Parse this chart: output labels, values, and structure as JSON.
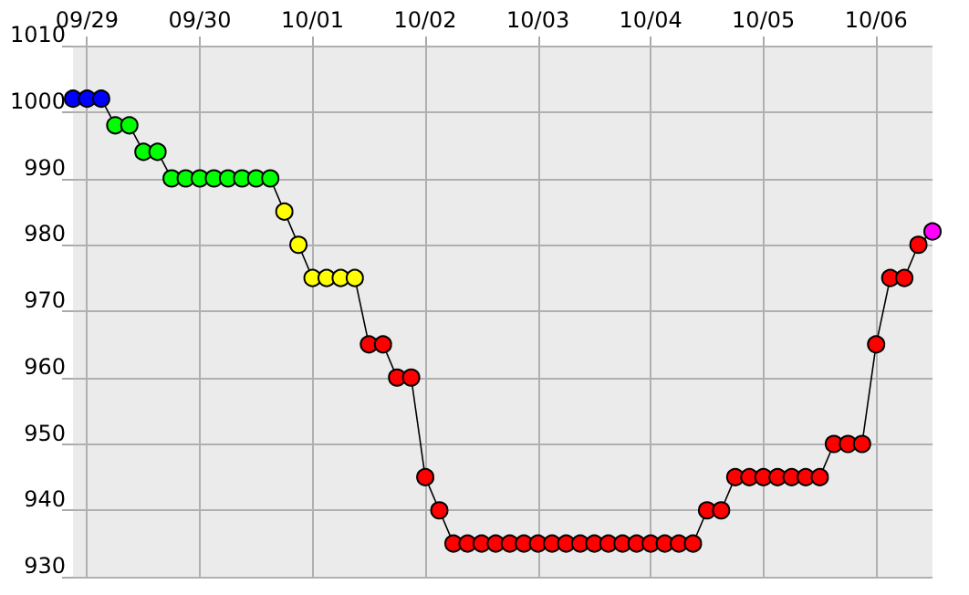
{
  "chart_data": {
    "type": "line",
    "marker": "circle",
    "grid": true,
    "x": [
      "--09-28T21:00",
      "--09-29T00:00",
      "--09-29T03:00",
      "--09-29T06:00",
      "--09-29T09:00",
      "--09-29T12:00",
      "--09-29T15:00",
      "--09-29T18:00",
      "--09-29T21:00",
      "--09-30T00:00",
      "--09-30T03:00",
      "--09-30T06:00",
      "--09-30T09:00",
      "--09-30T12:00",
      "--09-30T15:00",
      "--09-30T18:00",
      "--09-30T21:00",
      "--10-01T00:00",
      "--10-01T03:00",
      "--10-01T06:00",
      "--10-01T09:00",
      "--10-01T12:00",
      "--10-01T15:00",
      "--10-01T18:00",
      "--10-01T21:00",
      "--10-02T00:00",
      "--10-02T03:00",
      "--10-02T06:00",
      "--10-02T09:00",
      "--10-02T12:00",
      "--10-02T15:00",
      "--10-02T18:00",
      "--10-02T21:00",
      "--10-03T00:00",
      "--10-03T03:00",
      "--10-03T06:00",
      "--10-03T09:00",
      "--10-03T12:00",
      "--10-03T15:00",
      "--10-03T18:00",
      "--10-03T21:00",
      "--10-04T00:00",
      "--10-04T03:00",
      "--10-04T06:00",
      "--10-04T09:00",
      "--10-04T12:00",
      "--10-04T15:00",
      "--10-04T18:00",
      "--10-04T21:00",
      "--10-05T00:00",
      "--10-05T03:00",
      "--10-05T06:00",
      "--10-05T09:00",
      "--10-05T12:00",
      "--10-05T15:00",
      "--10-05T18:00",
      "--10-05T21:00",
      "--10-06T00:00",
      "--10-06T03:00",
      "--10-06T06:00",
      "--10-06T09:00",
      "--10-06T12:00"
    ],
    "values": [
      1002,
      1002,
      1002,
      998,
      998,
      994,
      994,
      990,
      990,
      990,
      990,
      990,
      990,
      990,
      990,
      985,
      980,
      975,
      975,
      975,
      975,
      965,
      965,
      960,
      960,
      945,
      940,
      935,
      935,
      935,
      935,
      935,
      935,
      935,
      935,
      935,
      935,
      935,
      935,
      935,
      935,
      935,
      935,
      935,
      935,
      940,
      940,
      945,
      945,
      945,
      945,
      945,
      945,
      945,
      950,
      950,
      950,
      965,
      975,
      975,
      980,
      982
    ],
    "colors": [
      "#0000ff",
      "#0000ff",
      "#0000ff",
      "#00ff00",
      "#00ff00",
      "#00ff00",
      "#00ff00",
      "#00ff00",
      "#00ff00",
      "#00ff00",
      "#00ff00",
      "#00ff00",
      "#00ff00",
      "#00ff00",
      "#00ff00",
      "#ffff00",
      "#ffff00",
      "#ffff00",
      "#ffff00",
      "#ffff00",
      "#ffff00",
      "#ff0000",
      "#ff0000",
      "#ff0000",
      "#ff0000",
      "#ff0000",
      "#ff0000",
      "#ff0000",
      "#ff0000",
      "#ff0000",
      "#ff0000",
      "#ff0000",
      "#ff0000",
      "#ff0000",
      "#ff0000",
      "#ff0000",
      "#ff0000",
      "#ff0000",
      "#ff0000",
      "#ff0000",
      "#ff0000",
      "#ff0000",
      "#ff0000",
      "#ff0000",
      "#ff0000",
      "#ff0000",
      "#ff0000",
      "#ff0000",
      "#ff0000",
      "#ff0000",
      "#ff0000",
      "#ff0000",
      "#ff0000",
      "#ff0000",
      "#ff0000",
      "#ff0000",
      "#ff0000",
      "#ff0000",
      "#ff0000",
      "#ff0000",
      "#ff0000",
      "#ff00ff"
    ],
    "xlim": [
      "--09-28T21:00",
      "--10-06T12:00"
    ],
    "xticks": [
      {
        "value": "--09-29",
        "label": "09/29"
      },
      {
        "value": "--09-30",
        "label": "09/30"
      },
      {
        "value": "--10-01",
        "label": "10/01"
      },
      {
        "value": "--10-02",
        "label": "10/02"
      },
      {
        "value": "--10-03",
        "label": "10/03"
      },
      {
        "value": "--10-04",
        "label": "10/04"
      },
      {
        "value": "--10-05",
        "label": "10/05"
      },
      {
        "value": "--10-06",
        "label": "10/06"
      }
    ],
    "ylim": [
      930,
      1010
    ],
    "yticks": [
      930,
      940,
      950,
      960,
      970,
      980,
      990,
      1000,
      1010
    ]
  }
}
